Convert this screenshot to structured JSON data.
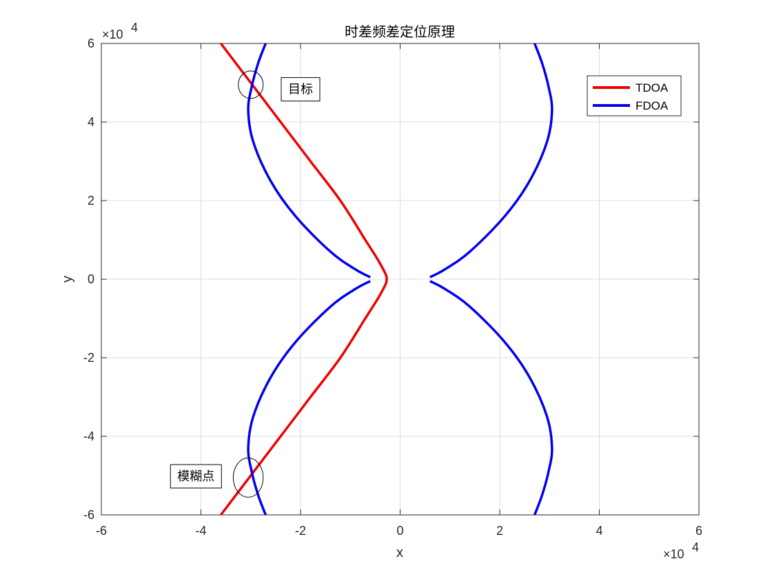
{
  "chart_data": {
    "type": "line",
    "title": "时差频差定位原理",
    "xlabel": "x",
    "ylabel": "y",
    "xlim": [
      -60000,
      60000
    ],
    "ylim": [
      -60000,
      60000
    ],
    "xticks": [
      -60000,
      -40000,
      -20000,
      0,
      20000,
      40000,
      60000
    ],
    "yticks": [
      -60000,
      -40000,
      -20000,
      0,
      20000,
      40000,
      60000
    ],
    "xtick_labels": [
      "-6",
      "-4",
      "-2",
      "0",
      "2",
      "4",
      "6"
    ],
    "ytick_labels": [
      "-6",
      "-4",
      "-2",
      "0",
      "2",
      "4",
      "6"
    ],
    "x_exponent_label": "×10",
    "x_exponent": "4",
    "y_exponent_label": "×10",
    "y_exponent": "4",
    "grid": true,
    "legend_position": "top-right",
    "series": [
      {
        "name": "TDOA",
        "color": "#ee0000",
        "points": [
          [
            -36000,
            60000
          ],
          [
            -30000,
            50000
          ],
          [
            -24000,
            40000
          ],
          [
            -18000,
            30000
          ],
          [
            -12000,
            20000
          ],
          [
            -7000,
            10000
          ],
          [
            -4500,
            5000
          ],
          [
            -3000,
            1500
          ],
          [
            -2700,
            0
          ],
          [
            -3000,
            -1500
          ],
          [
            -4500,
            -5000
          ],
          [
            -7000,
            -10000
          ],
          [
            -12000,
            -20000
          ],
          [
            -18000,
            -30000
          ],
          [
            -24000,
            -40000
          ],
          [
            -30000,
            -50000
          ],
          [
            -36000,
            -60000
          ]
        ]
      },
      {
        "name": "FDOA",
        "color": "#0000ee",
        "segments": [
          [
            [
              -27000,
              60000
            ],
            [
              -28500,
              55000
            ],
            [
              -29800,
              49000
            ],
            [
              -30500,
              43000
            ],
            [
              -29500,
              35000
            ],
            [
              -26000,
              25000
            ],
            [
              -21000,
              16000
            ],
            [
              -14000,
              7000
            ],
            [
              -9000,
              2500
            ],
            [
              -6000,
              500
            ]
          ],
          [
            [
              -6000,
              -500
            ],
            [
              -9000,
              -2500
            ],
            [
              -14000,
              -7000
            ],
            [
              -21000,
              -16000
            ],
            [
              -26000,
              -25000
            ],
            [
              -29500,
              -35000
            ],
            [
              -30500,
              -43000
            ],
            [
              -29800,
              -49000
            ],
            [
              -28500,
              -55000
            ],
            [
              -27000,
              -60000
            ]
          ],
          [
            [
              27000,
              60000
            ],
            [
              28500,
              55000
            ],
            [
              29800,
              49000
            ],
            [
              30500,
              43000
            ],
            [
              29500,
              35000
            ],
            [
              26000,
              25000
            ],
            [
              21000,
              16000
            ],
            [
              14000,
              7000
            ],
            [
              9000,
              2500
            ],
            [
              6000,
              500
            ]
          ],
          [
            [
              6000,
              -500
            ],
            [
              9000,
              -2500
            ],
            [
              14000,
              -7000
            ],
            [
              21000,
              -16000
            ],
            [
              26000,
              -25000
            ],
            [
              29500,
              -35000
            ],
            [
              30500,
              -43000
            ],
            [
              29800,
              -49000
            ],
            [
              28500,
              -55000
            ],
            [
              27000,
              -60000
            ]
          ]
        ]
      }
    ],
    "annotations": [
      {
        "text": "目标",
        "x": -20000,
        "y": 48500,
        "marker": {
          "cx": -30000,
          "cy": 49500,
          "rx": 2500,
          "ry": 3500
        }
      },
      {
        "text": "模糊点",
        "x": -41000,
        "y": -50000,
        "marker": {
          "cx": -30500,
          "cy": -50500,
          "rx": 3000,
          "ry": 5000
        }
      }
    ]
  }
}
